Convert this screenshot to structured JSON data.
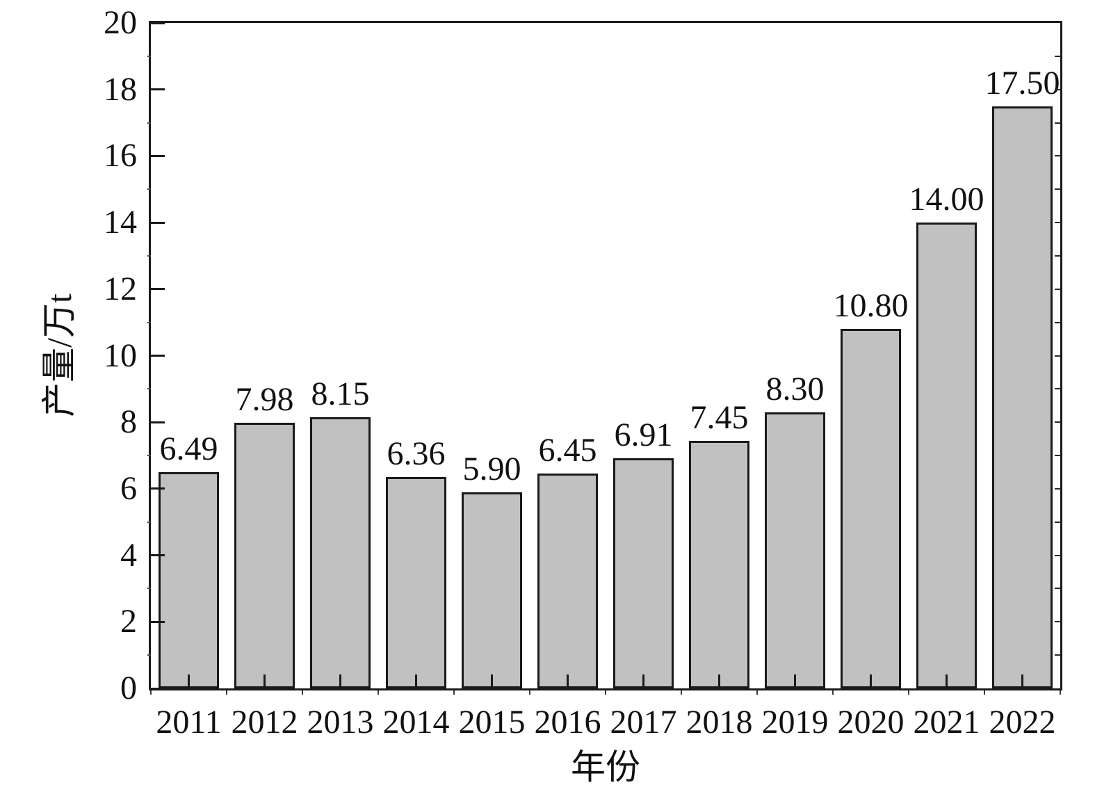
{
  "figure": {
    "background": "#ffffff"
  },
  "chart_data": {
    "type": "bar",
    "categories": [
      "2011",
      "2012",
      "2013",
      "2014",
      "2015",
      "2016",
      "2017",
      "2018",
      "2019",
      "2020",
      "2021",
      "2022"
    ],
    "values": [
      6.49,
      7.98,
      8.15,
      6.36,
      5.9,
      6.45,
      6.91,
      7.45,
      8.3,
      10.8,
      14.0,
      17.5
    ],
    "bar_labels": [
      "6.49",
      "7.98",
      "8.15",
      "6.36",
      "5.90",
      "6.45",
      "6.91",
      "7.45",
      "8.30",
      "10.80",
      "14.00",
      "17.50"
    ],
    "title": "",
    "xlabel": "年份",
    "ylabel": "产量/万t",
    "ylim": [
      0,
      20
    ],
    "y_major_ticks": [
      0,
      2,
      4,
      6,
      8,
      10,
      12,
      14,
      16,
      18,
      20
    ],
    "y_minor_step": 1,
    "grid": false,
    "legend": null,
    "bar_fill_color": "#c1c1c1",
    "bar_border_color": "#1a1a1a",
    "axis_color": "#1a1a1a"
  }
}
